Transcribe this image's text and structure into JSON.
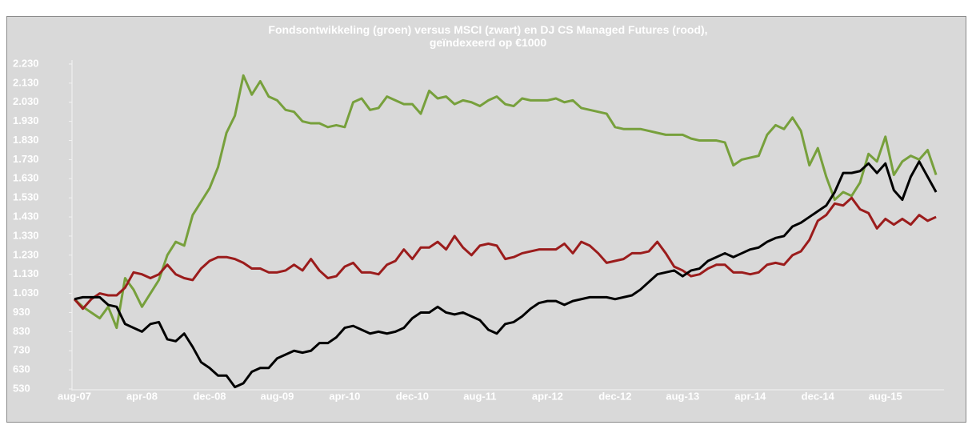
{
  "chart_data": {
    "type": "line",
    "title": "Fondsontwikkeling (groen) versus MSCI (zwart) en DJ CS Managed Futures (rood), geïndexeerd op €1000",
    "categories": [
      "aug-07",
      null,
      null,
      null,
      null,
      null,
      null,
      null,
      "apr-08",
      null,
      null,
      null,
      null,
      null,
      null,
      null,
      "dec-08",
      null,
      null,
      null,
      null,
      null,
      null,
      null,
      "aug-09",
      null,
      null,
      null,
      null,
      null,
      null,
      null,
      "apr-10",
      null,
      null,
      null,
      null,
      null,
      null,
      null,
      "dec-10",
      null,
      null,
      null,
      null,
      null,
      null,
      null,
      "aug-11",
      null,
      null,
      null,
      null,
      null,
      null,
      null,
      "apr-12",
      null,
      null,
      null,
      null,
      null,
      null,
      null,
      "dec-12",
      null,
      null,
      null,
      null,
      null,
      null,
      null,
      "aug-13",
      null,
      null,
      null,
      null,
      null,
      null,
      null,
      "apr-14",
      null,
      null,
      null,
      null,
      null,
      null,
      null,
      "dec-14",
      null,
      null,
      null,
      null,
      null,
      null,
      null,
      "aug-15",
      null,
      null,
      null,
      null,
      null,
      null
    ],
    "series": [
      {
        "color": "#77a03c",
        "values": [
          1000,
          960,
          930,
          900,
          960,
          850,
          1110,
          1050,
          960,
          1030,
          1100,
          1230,
          1300,
          1280,
          1440,
          1510,
          1580,
          1690,
          1870,
          1960,
          2170,
          2070,
          2140,
          2060,
          2040,
          1990,
          1980,
          1930,
          1920,
          1920,
          1900,
          1910,
          1900,
          2030,
          2050,
          1990,
          2000,
          2060,
          2040,
          2020,
          2020,
          1970,
          2090,
          2050,
          2060,
          2020,
          2040,
          2030,
          2010,
          2040,
          2060,
          2020,
          2010,
          2050,
          2040,
          2040,
          2040,
          2050,
          2030,
          2040,
          2000,
          1990,
          1980,
          1970,
          1900,
          1890,
          1890,
          1890,
          1880,
          1870,
          1860,
          1860,
          1860,
          1840,
          1830,
          1830,
          1830,
          1820,
          1700,
          1730,
          1740,
          1750,
          1860,
          1910,
          1890,
          1950,
          1880,
          1700,
          1790,
          1640,
          1520,
          1560,
          1540,
          1610,
          1760,
          1720,
          1850,
          1650,
          1720,
          1750,
          1730,
          1780,
          1650
        ]
      },
      {
        "color": "#9b1c1c",
        "values": [
          1000,
          950,
          1000,
          1030,
          1020,
          1020,
          1060,
          1140,
          1130,
          1110,
          1130,
          1180,
          1130,
          1110,
          1100,
          1160,
          1200,
          1220,
          1220,
          1210,
          1190,
          1160,
          1160,
          1140,
          1140,
          1150,
          1180,
          1150,
          1210,
          1150,
          1110,
          1120,
          1170,
          1190,
          1140,
          1140,
          1130,
          1180,
          1200,
          1260,
          1210,
          1270,
          1270,
          1300,
          1260,
          1330,
          1270,
          1230,
          1280,
          1290,
          1280,
          1210,
          1220,
          1240,
          1250,
          1260,
          1260,
          1260,
          1290,
          1240,
          1300,
          1280,
          1240,
          1190,
          1200,
          1210,
          1240,
          1240,
          1250,
          1300,
          1240,
          1170,
          1150,
          1120,
          1130,
          1160,
          1180,
          1180,
          1140,
          1140,
          1130,
          1140,
          1180,
          1190,
          1180,
          1230,
          1250,
          1310,
          1410,
          1440,
          1500,
          1490,
          1530,
          1470,
          1450,
          1370,
          1420,
          1390,
          1420,
          1390,
          1440,
          1410,
          1430
        ]
      },
      {
        "color": "#000000",
        "values": [
          1000,
          1010,
          1010,
          1010,
          970,
          960,
          870,
          850,
          830,
          870,
          880,
          790,
          780,
          820,
          750,
          670,
          640,
          600,
          600,
          540,
          560,
          620,
          640,
          640,
          690,
          710,
          730,
          720,
          730,
          770,
          770,
          800,
          850,
          860,
          840,
          820,
          830,
          820,
          830,
          850,
          900,
          930,
          930,
          960,
          930,
          920,
          930,
          910,
          890,
          840,
          820,
          870,
          880,
          910,
          950,
          980,
          990,
          990,
          970,
          990,
          1000,
          1010,
          1010,
          1010,
          1000,
          1010,
          1020,
          1050,
          1090,
          1130,
          1140,
          1150,
          1120,
          1150,
          1160,
          1200,
          1220,
          1240,
          1220,
          1240,
          1260,
          1270,
          1300,
          1320,
          1330,
          1380,
          1400,
          1430,
          1460,
          1490,
          1560,
          1660,
          1660,
          1670,
          1710,
          1660,
          1710,
          1570,
          1520,
          1640,
          1720,
          1640,
          1560
        ]
      }
    ],
    "ylim": [
      530,
      2230
    ],
    "yticks": [
      {
        "value": 2230,
        "label": "2.230"
      },
      {
        "value": 2130,
        "label": "2.130"
      },
      {
        "value": 2030,
        "label": "2.030"
      },
      {
        "value": 1930,
        "label": "1.930"
      },
      {
        "value": 1830,
        "label": "1.830"
      },
      {
        "value": 1730,
        "label": "1.730"
      },
      {
        "value": 1630,
        "label": "1.630"
      },
      {
        "value": 1530,
        "label": "1.530"
      },
      {
        "value": 1430,
        "label": "1.430"
      },
      {
        "value": 1330,
        "label": "1.330"
      },
      {
        "value": 1230,
        "label": "1.230"
      },
      {
        "value": 1130,
        "label": "1.130"
      },
      {
        "value": 1030,
        "label": "1.030"
      },
      930,
      830,
      730,
      630,
      530
    ],
    "grid": false
  }
}
